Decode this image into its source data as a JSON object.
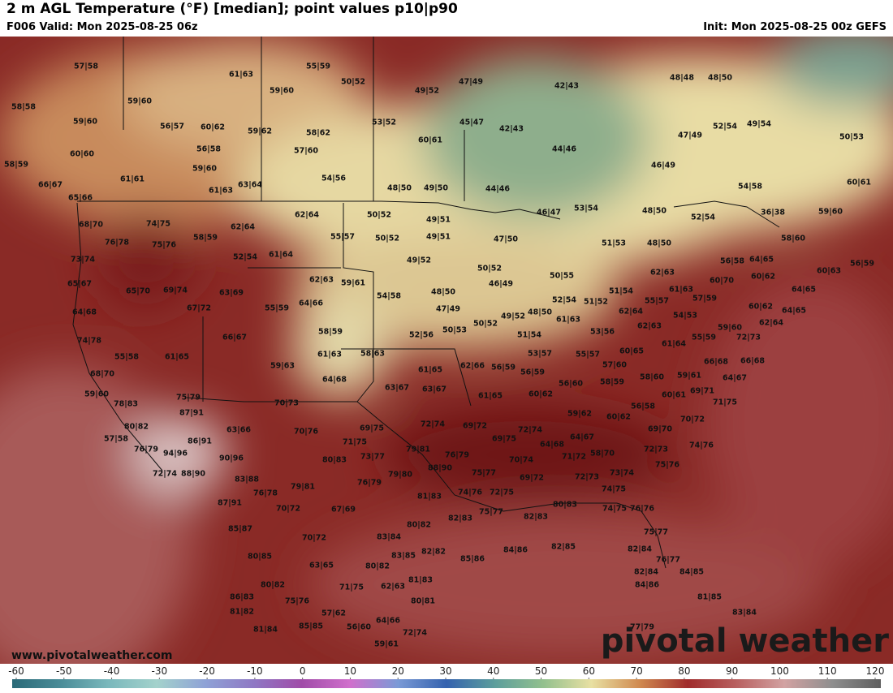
{
  "header": {
    "title": "2 m AGL Temperature (°F) [median]; point values p10|p90",
    "valid": "F006 Valid: Mon 2025-08-25 06z",
    "init": "Init: Mon 2025-08-25 00z GEFS"
  },
  "point_values": [
    "57|58",
    "55|59",
    "61|63",
    "50|52",
    "47|49",
    "42|43",
    "48|48",
    "48|50",
    "49|52",
    "59|60",
    "58|58",
    "59|60",
    "59|60",
    "56|57",
    "60|62",
    "59|62",
    "58|62",
    "53|52",
    "45|47",
    "42|43",
    "52|54",
    "49|54",
    "47|49",
    "50|53",
    "60|61",
    "60|60",
    "56|58",
    "57|60",
    "44|46",
    "58|59",
    "59|60",
    "54|56",
    "46|49",
    "61|61",
    "66|67",
    "63|64",
    "61|63",
    "48|50",
    "49|50",
    "44|46",
    "54|58",
    "60|61",
    "65|66",
    "46|47",
    "53|54",
    "48|50",
    "52|54",
    "36|38",
    "59|60",
    "62|64",
    "50|52",
    "49|51",
    "68|70",
    "74|75",
    "62|64",
    "55|57",
    "50|52",
    "49|51",
    "47|50",
    "58|59",
    "76|78",
    "75|76",
    "51|53",
    "48|50",
    "58|60",
    "52|54",
    "61|64",
    "49|52",
    "73|74",
    "56|58",
    "64|65",
    "56|59",
    "50|52",
    "50|55",
    "62|63",
    "60|63",
    "62|63",
    "59|61",
    "46|49",
    "60|62",
    "60|70",
    "65|67",
    "65|70",
    "69|74",
    "63|69",
    "51|54",
    "61|63",
    "54|58",
    "48|50",
    "64|65",
    "52|54",
    "51|52",
    "57|59",
    "55|57",
    "55|59",
    "64|66",
    "67|72",
    "47|49",
    "60|62",
    "64|65",
    "64|68",
    "49|52",
    "48|50",
    "61|63",
    "62|64",
    "54|53",
    "50|52",
    "50|53",
    "62|63",
    "62|64",
    "58|59",
    "52|56",
    "51|54",
    "53|56",
    "55|59",
    "59|60",
    "72|73",
    "66|67",
    "74|78",
    "61|64",
    "61|63",
    "58|63",
    "61|65",
    "55|58",
    "53|57",
    "55|57",
    "60|65",
    "66|68",
    "66|68",
    "59|63",
    "62|66",
    "61|65",
    "56|59",
    "57|60",
    "68|70",
    "64|68",
    "56|59",
    "59|61",
    "64|67",
    "56|60",
    "58|60",
    "58|59",
    "63|67",
    "63|67",
    "69|71",
    "59|60",
    "75|79",
    "60|61",
    "61|65",
    "60|62",
    "71|75",
    "70|73",
    "78|83",
    "56|58",
    "59|62",
    "87|91",
    "60|62",
    "70|72",
    "72|74",
    "69|72",
    "69|75",
    "72|74",
    "69|70",
    "80|82",
    "63|66",
    "70|76",
    "86|91",
    "69|75",
    "64|67",
    "57|58",
    "76|79",
    "64|68",
    "74|76",
    "71|75",
    "79|81",
    "72|73",
    "94|96",
    "76|79",
    "58|70",
    "90|96",
    "80|83",
    "73|77",
    "71|72",
    "70|74",
    "75|76",
    "88|90",
    "72|74",
    "88|90",
    "75|77",
    "79|80",
    "73|74",
    "72|73",
    "83|88",
    "69|72",
    "79|81",
    "76|79",
    "74|75",
    "76|78",
    "81|83",
    "74|76",
    "72|75",
    "87|91",
    "74|75",
    "76|76",
    "70|72",
    "67|69",
    "75|77",
    "82|83",
    "82|83",
    "80|83",
    "80|82",
    "85|87",
    "75|77",
    "70|72",
    "83|84",
    "80|85",
    "82|82",
    "83|85",
    "85|86",
    "84|86",
    "82|85",
    "82|84",
    "76|77",
    "63|65",
    "80|82",
    "84|85",
    "80|82",
    "81|83",
    "62|63",
    "82|84",
    "84|86",
    "71|75",
    "86|83",
    "75|76",
    "80|81",
    "81|85",
    "81|82",
    "57|62",
    "83|84",
    "64|66",
    "85|85",
    "56|60",
    "72|74",
    "77|79",
    "81|84",
    "59|61"
  ],
  "watermark": "pivotal weather",
  "website": "www.pivotalweather.com",
  "colorbar": {
    "ticks": [
      -60,
      -50,
      -40,
      -30,
      -20,
      -10,
      0,
      10,
      20,
      30,
      40,
      50,
      60,
      70,
      80,
      90,
      100,
      110,
      120
    ],
    "colors": [
      "#2a6a78",
      "#4a8c98",
      "#7ab8bc",
      "#a4d2cc",
      "#8ea2d6",
      "#8e78c4",
      "#a04ca8",
      "#d070cc",
      "#7a9ad6",
      "#3462ae",
      "#5c9e9c",
      "#92c08e",
      "#e8e0a2",
      "#d08a50",
      "#a02c2c",
      "#b86060",
      "#d2a2a2",
      "#8e8e8e",
      "#5e5e5e"
    ]
  }
}
